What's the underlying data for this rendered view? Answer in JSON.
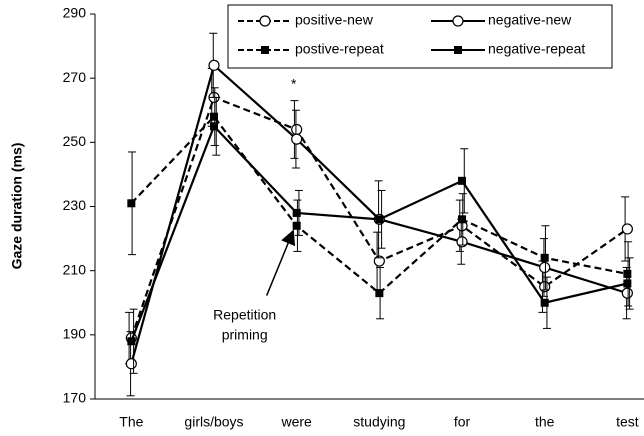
{
  "chart_data": {
    "type": "line",
    "ylabel": "Gaze duration (ms)",
    "categories": [
      "The",
      "girls/boys",
      "were",
      "studying",
      "for",
      "the",
      "test"
    ],
    "ylim": [
      170,
      290
    ],
    "yticks": [
      170,
      190,
      210,
      230,
      250,
      270,
      290
    ],
    "legend": "top",
    "series": [
      {
        "name": "positive-new",
        "color": "#000000",
        "linestyle": "dashed",
        "marker": "circle-open",
        "values": [
          189,
          264,
          254,
          213,
          224,
          205,
          223
        ],
        "errors": [
          8,
          9,
          9,
          9,
          8,
          8,
          10
        ]
      },
      {
        "name": "negative-new",
        "color": "#000000",
        "linestyle": "solid",
        "marker": "circle-open",
        "values": [
          181,
          274,
          251,
          226,
          219,
          211,
          203
        ],
        "errors": [
          10,
          10,
          9,
          12,
          7,
          9,
          8
        ]
      },
      {
        "name": "postive-repeat",
        "color": "#000000",
        "linestyle": "dashed",
        "marker": "square",
        "values": [
          231,
          258,
          224,
          203,
          226,
          214,
          209
        ],
        "errors": [
          16,
          9,
          8,
          8,
          8,
          10,
          10
        ]
      },
      {
        "name": "negative-repeat",
        "color": "#000000",
        "linestyle": "solid",
        "marker": "square",
        "values": [
          188,
          255,
          228,
          226,
          238,
          200,
          206
        ],
        "errors": [
          10,
          9,
          7,
          9,
          10,
          8,
          8
        ]
      }
    ],
    "annotations": [
      {
        "text": "*",
        "category": 2,
        "y": 268
      },
      {
        "text": [
          "Repetition",
          "priming"
        ],
        "category": 2,
        "y": 196,
        "arrow_to": 222
      }
    ]
  }
}
